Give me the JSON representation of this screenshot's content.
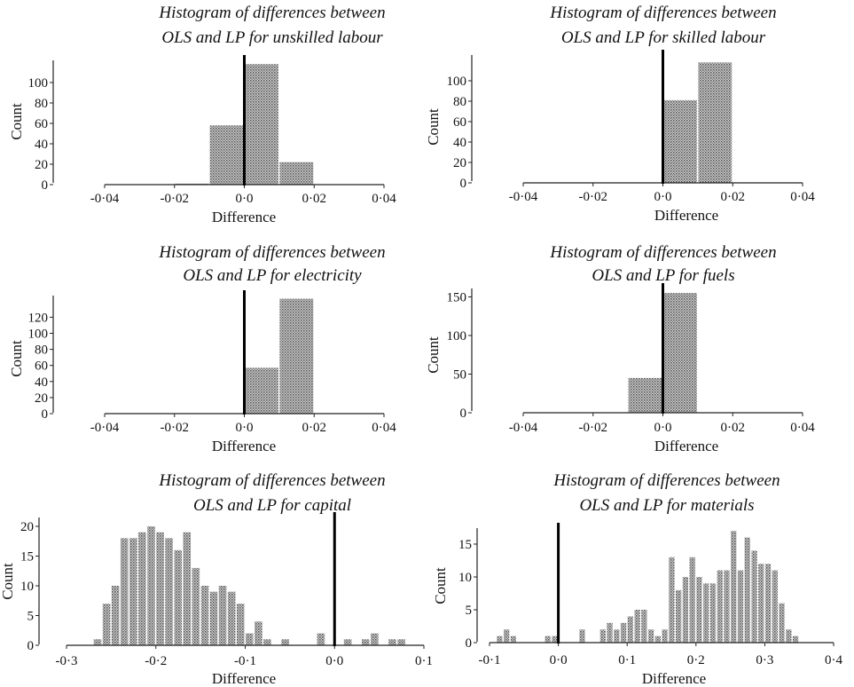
{
  "chart_data": [
    {
      "type": "bar",
      "title_lines": [
        "Histogram of differences between",
        "OLS and LP for unskilled labour"
      ],
      "xlabel": "Difference",
      "ylabel": "Count",
      "xlim": [
        -0.04,
        0.04
      ],
      "ylim": [
        0,
        120
      ],
      "xticks": [
        -0.04,
        -0.02,
        0.0,
        0.02,
        0.04
      ],
      "xtick_labels": [
        "-0·04",
        "-0·02",
        "0·0",
        "0·02",
        "0·04"
      ],
      "yticks": [
        0,
        20,
        40,
        60,
        80,
        100
      ],
      "ytick_labels": [
        "0",
        "20",
        "40",
        "60",
        "80",
        "100"
      ],
      "reference_line_x": 0.0,
      "bins": [
        {
          "start": -0.02,
          "end": -0.01,
          "count": 1
        },
        {
          "start": -0.01,
          "end": 0.0,
          "count": 58
        },
        {
          "start": 0.0,
          "end": 0.01,
          "count": 118
        },
        {
          "start": 0.01,
          "end": 0.02,
          "count": 22
        }
      ]
    },
    {
      "type": "bar",
      "title_lines": [
        "Histogram of differences between",
        "OLS and LP for skilled labour"
      ],
      "xlabel": "Difference",
      "ylabel": "Count",
      "xlim": [
        -0.04,
        0.04
      ],
      "ylim": [
        0,
        125
      ],
      "xticks": [
        -0.04,
        -0.02,
        0.0,
        0.02,
        0.04
      ],
      "xtick_labels": [
        "-0·04",
        "-0·02",
        "0·0",
        "0·02",
        "0·04"
      ],
      "yticks": [
        0,
        20,
        40,
        60,
        80,
        100
      ],
      "ytick_labels": [
        "0",
        "20",
        "40",
        "60",
        "80",
        "100"
      ],
      "reference_line_x": 0.0,
      "bins": [
        {
          "start": 0.0,
          "end": 0.01,
          "count": 81
        },
        {
          "start": 0.01,
          "end": 0.02,
          "count": 118
        }
      ]
    },
    {
      "type": "bar",
      "title_lines": [
        "Histogram of differences between",
        "OLS and LP for electricity"
      ],
      "xlabel": "Difference",
      "ylabel": "Count",
      "xlim": [
        -0.04,
        0.04
      ],
      "ylim": [
        0,
        145
      ],
      "xticks": [
        -0.04,
        -0.02,
        0.0,
        0.02,
        0.04
      ],
      "xtick_labels": [
        "-0·04",
        "-0·02",
        "0·0",
        "0·02",
        "0·04"
      ],
      "yticks": [
        0,
        20,
        40,
        60,
        80,
        100,
        120
      ],
      "ytick_labels": [
        "0",
        "20",
        "40",
        "60",
        "80",
        "100",
        "120"
      ],
      "reference_line_x": 0.0,
      "bins": [
        {
          "start": 0.0,
          "end": 0.01,
          "count": 57
        },
        {
          "start": 0.01,
          "end": 0.02,
          "count": 143
        }
      ]
    },
    {
      "type": "bar",
      "title_lines": [
        "Histogram of differences between",
        "OLS and LP for fuels"
      ],
      "xlabel": "Difference",
      "ylabel": "Count",
      "xlim": [
        -0.04,
        0.04
      ],
      "ylim": [
        0,
        165
      ],
      "xticks": [
        -0.04,
        -0.02,
        0.0,
        0.02,
        0.04
      ],
      "xtick_labels": [
        "-0·04",
        "-0·02",
        "0·0",
        "0·02",
        "0·04"
      ],
      "yticks": [
        0,
        50,
        100,
        150
      ],
      "ytick_labels": [
        "0",
        "50",
        "100",
        "150"
      ],
      "reference_line_x": 0.0,
      "bins": [
        {
          "start": -0.01,
          "end": 0.0,
          "count": 45
        },
        {
          "start": 0.0,
          "end": 0.01,
          "count": 155
        }
      ]
    },
    {
      "type": "bar",
      "title_lines": [
        "Histogram of differences between",
        "OLS and LP for capital"
      ],
      "xlabel": "Difference",
      "ylabel": "Count",
      "xlim": [
        -0.3,
        0.1
      ],
      "ylim": [
        0,
        21
      ],
      "xticks": [
        -0.3,
        -0.2,
        -0.1,
        0.0,
        0.1
      ],
      "xtick_labels": [
        "-0·3",
        "-0·2",
        "-0·1",
        "0·0",
        "0·1"
      ],
      "yticks": [
        0,
        5,
        10,
        15,
        20
      ],
      "ytick_labels": [
        "0",
        "5",
        "10",
        "15",
        "20"
      ],
      "reference_line_x": 0.0,
      "bin_start": -0.27,
      "bin_width": 0.01,
      "counts": [
        1,
        7,
        10,
        18,
        18,
        19,
        20,
        19,
        18,
        16,
        19,
        13,
        10,
        9,
        10,
        9,
        7,
        2,
        4,
        1,
        0,
        1,
        0,
        0,
        0,
        2,
        0,
        0,
        1,
        0,
        1,
        2,
        0,
        1,
        1
      ]
    },
    {
      "type": "bar",
      "title_lines": [
        "Histogram of differences between",
        "OLS and LP for materials"
      ],
      "xlabel": "Difference",
      "ylabel": "Count",
      "xlim": [
        -0.1,
        0.4
      ],
      "ylim": [
        0,
        18
      ],
      "xticks": [
        -0.1,
        0.0,
        0.1,
        0.2,
        0.3,
        0.4
      ],
      "xtick_labels": [
        "-0·1",
        "0·0",
        "0·1",
        "0·2",
        "0·3",
        "0·4"
      ],
      "yticks": [
        0,
        5,
        10,
        15
      ],
      "ytick_labels": [
        "0",
        "5",
        "10",
        "15"
      ],
      "reference_line_x": 0.0,
      "bin_start": -0.09,
      "bin_width": 0.01,
      "counts": [
        1,
        2,
        1,
        0,
        0,
        0,
        0,
        1,
        1,
        0,
        0,
        0,
        2,
        0,
        0,
        2,
        3,
        2,
        3,
        4,
        5,
        5,
        2,
        1,
        2,
        13,
        8,
        10,
        13,
        10,
        9,
        9,
        11,
        11,
        17,
        11,
        16,
        14,
        12,
        12,
        11,
        6,
        2,
        1
      ]
    }
  ]
}
